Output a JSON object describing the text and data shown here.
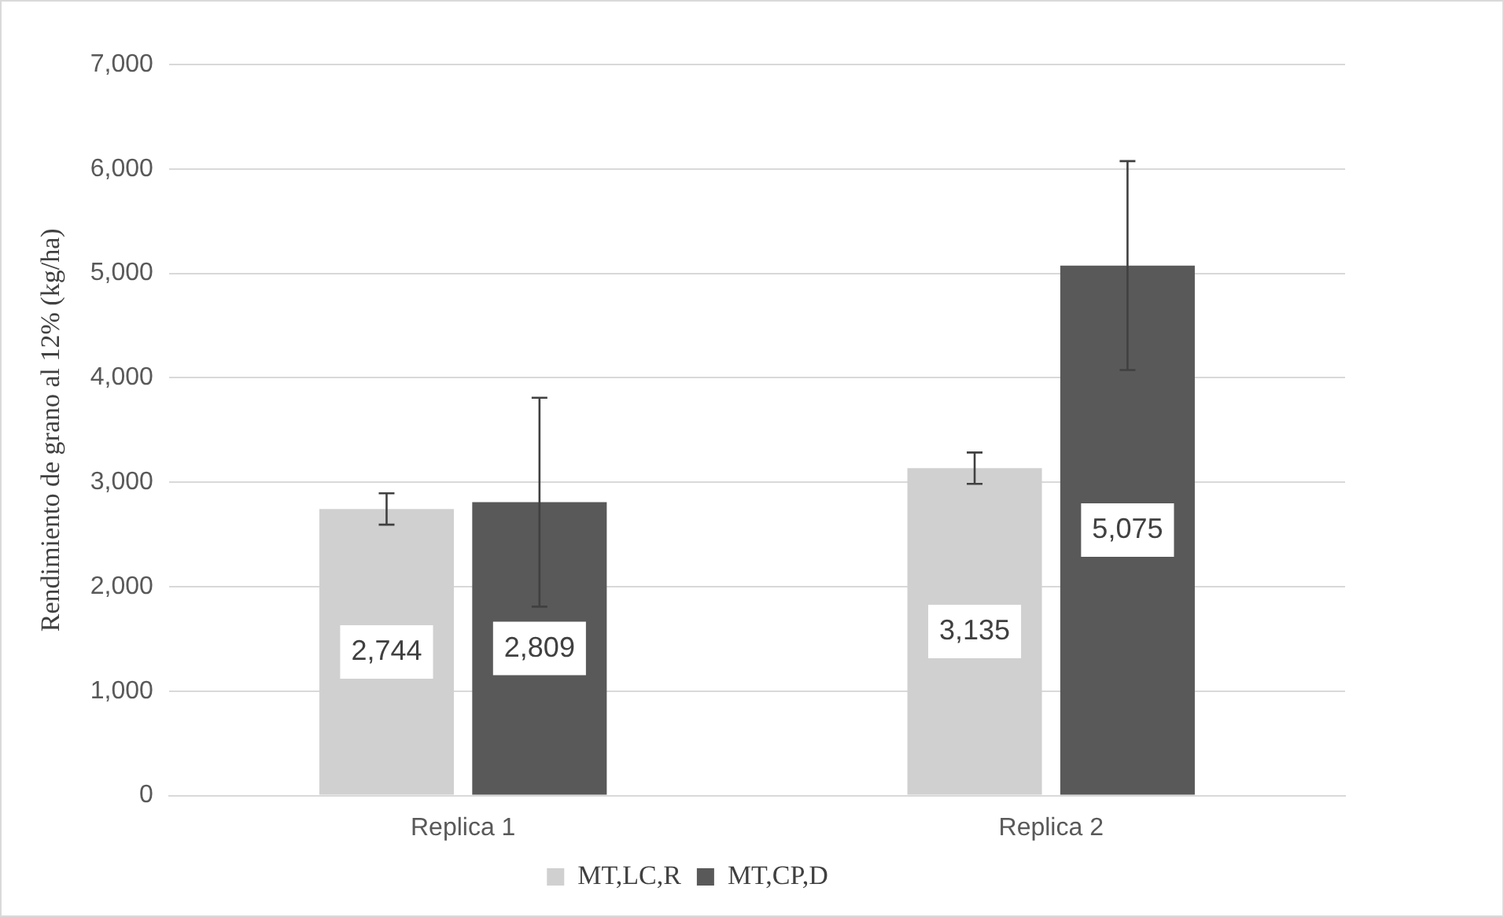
{
  "chart_data": {
    "type": "bar",
    "ylabel": "Rendimiento de grano al 12% (kg/ha)",
    "categories": [
      "Replica 1",
      "Replica 2"
    ],
    "series": [
      {
        "name": "MT,LC,R",
        "color": "#d0d0d0",
        "values": [
          2744,
          3135
        ],
        "value_labels": [
          "2,744",
          "3,135"
        ],
        "errors": [
          150,
          150
        ]
      },
      {
        "name": "MT,CP,D",
        "color": "#595959",
        "values": [
          2809,
          5075
        ],
        "value_labels": [
          "2,809",
          "5,075"
        ],
        "errors": [
          1000,
          1000
        ]
      }
    ],
    "ylim": [
      0,
      7000
    ],
    "yticks": [
      {
        "value": 0,
        "label": "0"
      },
      {
        "value": 1000,
        "label": "1,000"
      },
      {
        "value": 2000,
        "label": "2,000"
      },
      {
        "value": 3000,
        "label": "3,000"
      },
      {
        "value": 4000,
        "label": "4,000"
      },
      {
        "value": 5000,
        "label": "5,000"
      },
      {
        "value": 6000,
        "label": "6,000"
      },
      {
        "value": 7000,
        "label": "7,000"
      }
    ],
    "grid": "y",
    "legend": "bottom"
  }
}
